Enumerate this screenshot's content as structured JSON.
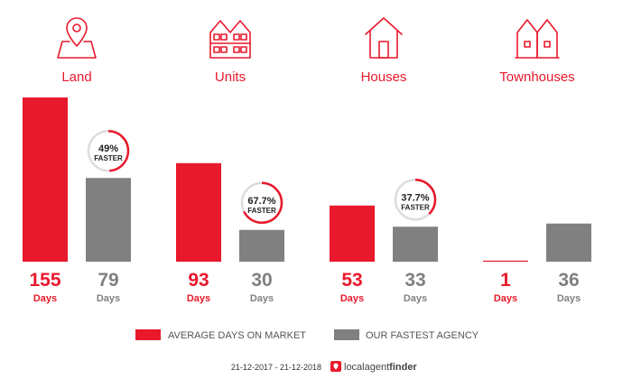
{
  "colors": {
    "market": "#e8192c",
    "agency": "#808080",
    "icon": "#e8192c",
    "ring_track": "#dddddd"
  },
  "categories": [
    {
      "label": "Land",
      "icon": "map-pin-icon"
    },
    {
      "label": "Units",
      "icon": "apartment-building-icon"
    },
    {
      "label": "Houses",
      "icon": "house-icon"
    },
    {
      "label": "Townhouses",
      "icon": "townhouse-icon"
    }
  ],
  "chart_data": {
    "type": "bar",
    "categories": [
      "Land",
      "Units",
      "Houses",
      "Townhouses"
    ],
    "series": [
      {
        "name": "AVERAGE DAYS ON MARKET",
        "values": [
          155,
          93,
          53,
          1
        ]
      },
      {
        "name": "OUR FASTEST AGENCY",
        "values": [
          79,
          30,
          33,
          36
        ]
      }
    ],
    "value_unit_label": "Days",
    "ylim": [
      0,
      155
    ],
    "legend_position": "bottom",
    "grid": false,
    "annotations": [
      {
        "category": "Land",
        "percent": "49%",
        "percent_value": 49,
        "label": "FASTER"
      },
      {
        "category": "Units",
        "percent": "67.7%",
        "percent_value": 67.7,
        "label": "FASTER"
      },
      {
        "category": "Houses",
        "percent": "37.7%",
        "percent_value": 37.7,
        "label": "FASTER"
      }
    ]
  },
  "legend": {
    "market_label": "AVERAGE DAYS ON MARKET",
    "agency_label": "OUR FASTEST AGENCY"
  },
  "footer": {
    "date_range": "21-12-2017 - 21-12-2018",
    "brand_local": "localagent",
    "brand_finder": "finder"
  }
}
